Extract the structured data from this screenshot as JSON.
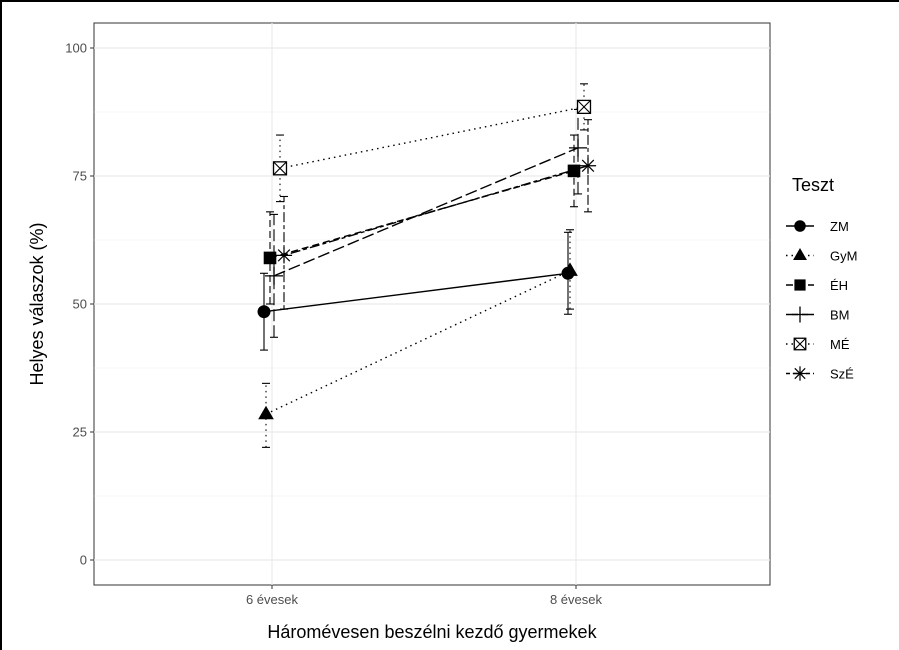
{
  "chart_data": {
    "type": "line",
    "xlabel": "Háromévesen beszélni kezdő gyermekek",
    "ylabel": "Helyes válaszok (%)",
    "categories": [
      "6 évesek",
      "8 évesek"
    ],
    "ylim": [
      0,
      100
    ],
    "yticks": [
      0,
      25,
      50,
      75,
      100
    ],
    "grid": true,
    "legend": {
      "title": "Teszt",
      "placement": "right"
    },
    "series": [
      {
        "name": "ZM",
        "marker": "circle",
        "linetype": "solid",
        "values": [
          48.5,
          56.0
        ],
        "err_low": [
          41.0,
          48.0
        ],
        "err_high": [
          56.0,
          64.0
        ]
      },
      {
        "name": "GyM",
        "marker": "triangle",
        "linetype": "dotted",
        "values": [
          28.5,
          56.5
        ],
        "err_low": [
          22.0,
          49.0
        ],
        "err_high": [
          34.5,
          64.5
        ]
      },
      {
        "name": "ÉH",
        "marker": "square",
        "linetype": "dashed",
        "values": [
          59.0,
          76.0
        ],
        "err_low": [
          50.0,
          69.0
        ],
        "err_high": [
          68.0,
          83.0
        ]
      },
      {
        "name": "BM",
        "marker": "plus",
        "linetype": "longdash",
        "values": [
          55.5,
          80.5
        ],
        "err_low": [
          43.5,
          71.5
        ],
        "err_high": [
          67.5,
          88.0
        ]
      },
      {
        "name": "MÉ",
        "marker": "boxx",
        "linetype": "dotted",
        "values": [
          76.5,
          88.5
        ],
        "err_low": [
          70.0,
          84.0
        ],
        "err_high": [
          83.0,
          93.0
        ]
      },
      {
        "name": "SzÉ",
        "marker": "star",
        "linetype": "twodash",
        "values": [
          59.5,
          77.0
        ],
        "err_low": [
          49.0,
          68.0
        ],
        "err_high": [
          71.0,
          86.0
        ]
      }
    ]
  }
}
